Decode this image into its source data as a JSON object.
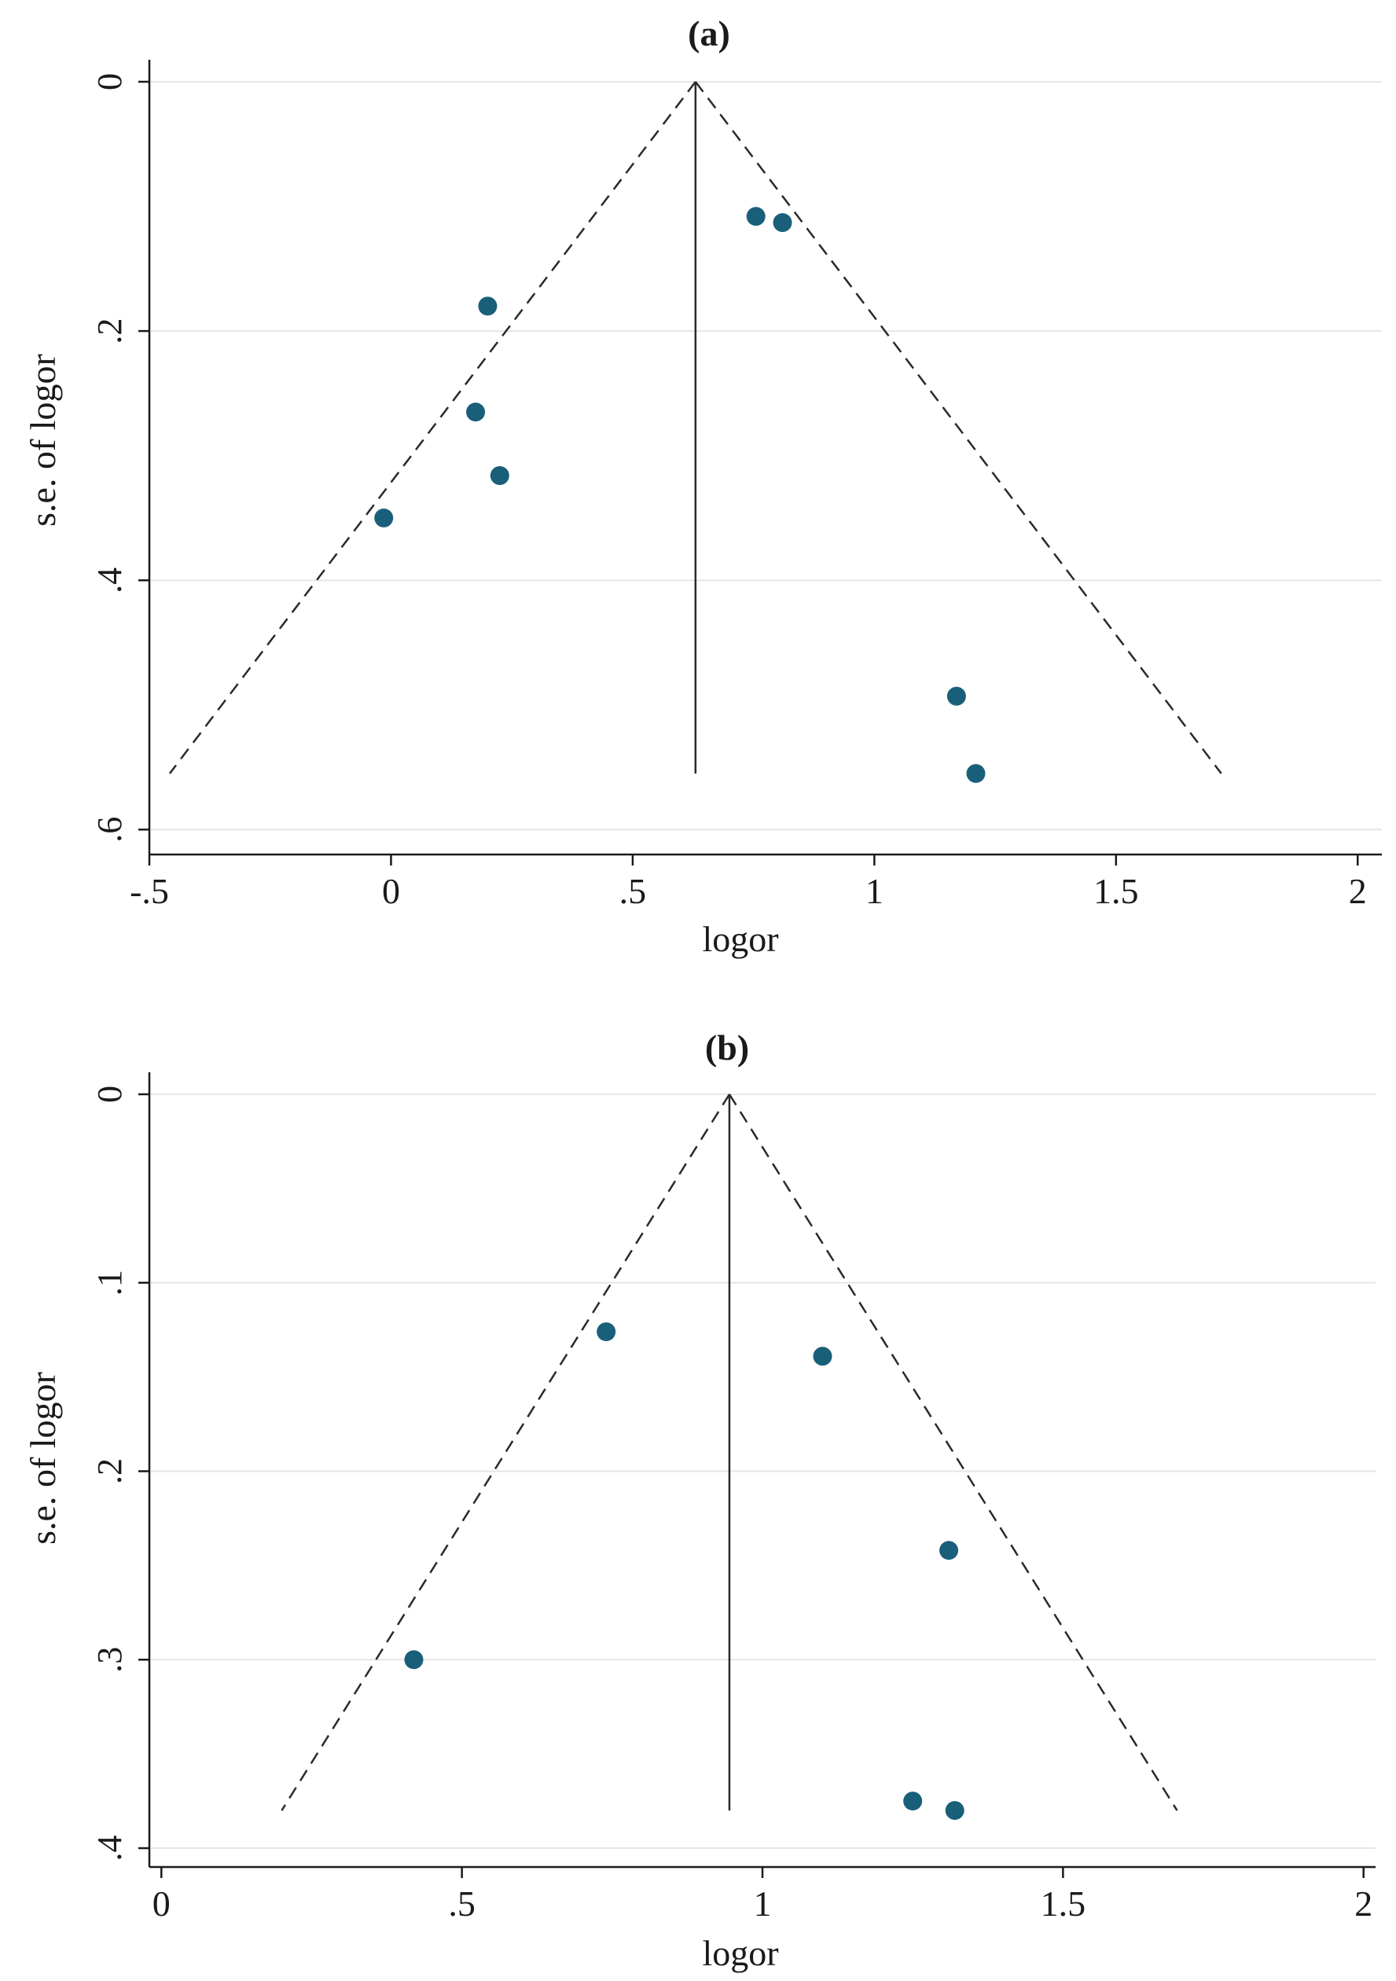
{
  "colors": {
    "marker": "#1a5f7a",
    "axis": "#1a1a1a",
    "grid": "#e6e6e6",
    "background": "#ffffff"
  },
  "chart_data": [
    {
      "type": "scatter",
      "title": "(a)",
      "xlabel": "logor",
      "ylabel": "s.e. of logor",
      "xlim": [
        -0.5,
        2.05
      ],
      "ylim": [
        0,
        0.62
      ],
      "y_inverted": true,
      "grid": "horizontal",
      "xticks": [
        -0.5,
        0,
        0.5,
        1,
        1.5,
        2
      ],
      "xtick_labels": [
        "-.5",
        "0",
        ".5",
        "1",
        "1.5",
        "2"
      ],
      "yticks": [
        0,
        0.2,
        0.4,
        0.6
      ],
      "ytick_labels": [
        "0",
        ".2",
        ".4",
        ".6"
      ],
      "pooled_estimate": 0.63,
      "funnel_max_se": 0.555,
      "points": [
        {
          "x": 0.755,
          "y": 0.108
        },
        {
          "x": 0.81,
          "y": 0.113
        },
        {
          "x": 0.2,
          "y": 0.18
        },
        {
          "x": 0.175,
          "y": 0.265
        },
        {
          "x": 0.225,
          "y": 0.316
        },
        {
          "x": -0.015,
          "y": 0.35
        },
        {
          "x": 1.17,
          "y": 0.493
        },
        {
          "x": 1.21,
          "y": 0.555
        }
      ]
    },
    {
      "type": "scatter",
      "title": "(b)",
      "xlabel": "logor",
      "ylabel": "s.e. of logor",
      "xlim": [
        -0.02,
        2.02
      ],
      "ylim": [
        0,
        0.41
      ],
      "y_inverted": true,
      "grid": "horizontal",
      "xticks": [
        0,
        0.5,
        1,
        1.5,
        2
      ],
      "xtick_labels": [
        "0",
        ".5",
        "1",
        "1.5",
        "2"
      ],
      "yticks": [
        0,
        0.1,
        0.2,
        0.3,
        0.4
      ],
      "ytick_labels": [
        "0",
        ".1",
        ".2",
        ".3",
        ".4"
      ],
      "pooled_estimate": 0.945,
      "funnel_max_se": 0.38,
      "points": [
        {
          "x": 0.74,
          "y": 0.126
        },
        {
          "x": 1.1,
          "y": 0.139
        },
        {
          "x": 1.31,
          "y": 0.242
        },
        {
          "x": 0.42,
          "y": 0.3
        },
        {
          "x": 1.25,
          "y": 0.375
        },
        {
          "x": 1.32,
          "y": 0.38
        }
      ]
    }
  ]
}
